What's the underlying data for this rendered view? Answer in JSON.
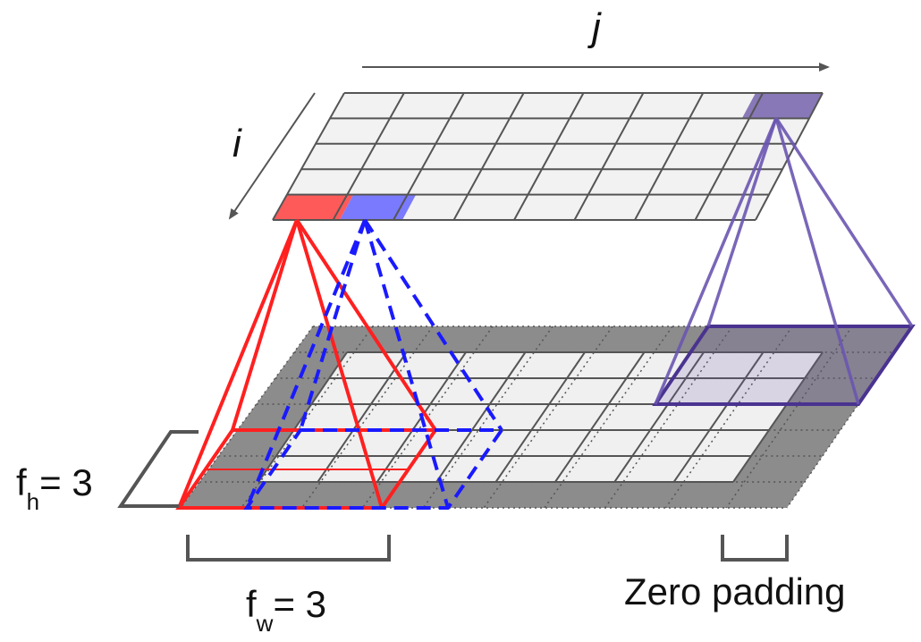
{
  "labels": {
    "j_axis": "j",
    "i_axis": "i",
    "fh_main": "f",
    "fh_sub": "h",
    "fh_value": "= 3",
    "fw_main": "f",
    "fw_sub": "w",
    "fw_value": "= 3",
    "zero_padding": "Zero padding"
  },
  "colors": {
    "red": "#ff2020",
    "blue": "#1a1aff",
    "purple": "#4a3390",
    "grid_line": "#555555",
    "cell": "#f2f2f2",
    "padding": "#8c8c8c",
    "red_cell": "#ff5a5a",
    "blue_cell": "#7a7aff",
    "purple_cell": "#8878b8"
  },
  "top_layer": {
    "rows": 5,
    "cols": 8
  },
  "bottom_layer": {
    "rows": 7,
    "cols": 10,
    "padding": 1
  }
}
